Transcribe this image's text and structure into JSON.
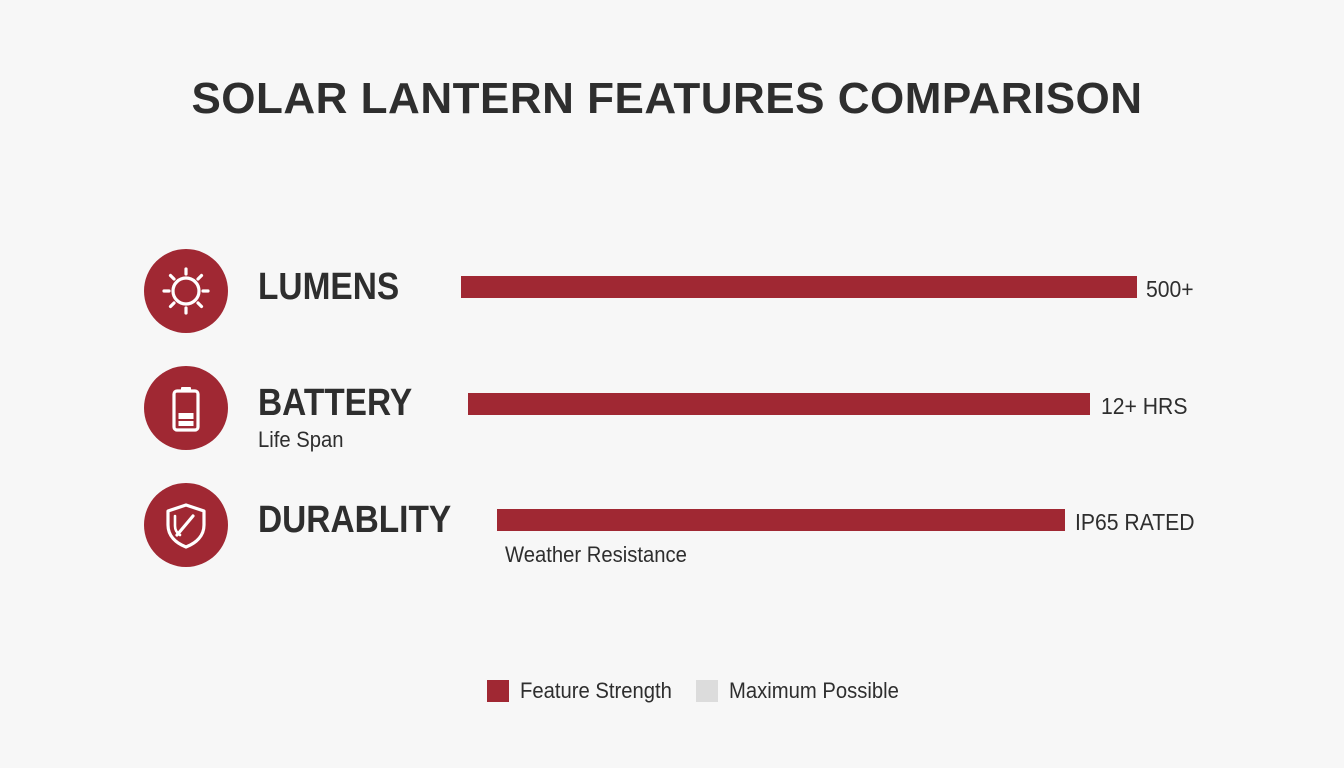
{
  "chart_data": {
    "type": "bar",
    "orientation": "horizontal",
    "title": "SOLAR LANTERN FEATURES COMPARISON",
    "categories": [
      "LUMENS",
      "BATTERY",
      "DURABLITY"
    ],
    "subtitles": [
      "",
      "Life Span",
      "Weather Resistance"
    ],
    "icons": [
      "sun-icon",
      "battery-icon",
      "shield-icon"
    ],
    "value_labels": [
      "500+",
      "12+ HRS",
      "IP65 RATED"
    ],
    "series": [
      {
        "name": "Feature Strength",
        "values": [
          1.0,
          0.92,
          0.84
        ],
        "color": "#a02833"
      }
    ],
    "max_series": {
      "name": "Maximum Possible",
      "color": "#dcdcdc"
    },
    "legend_position": "bottom-center",
    "grid": false
  }
}
